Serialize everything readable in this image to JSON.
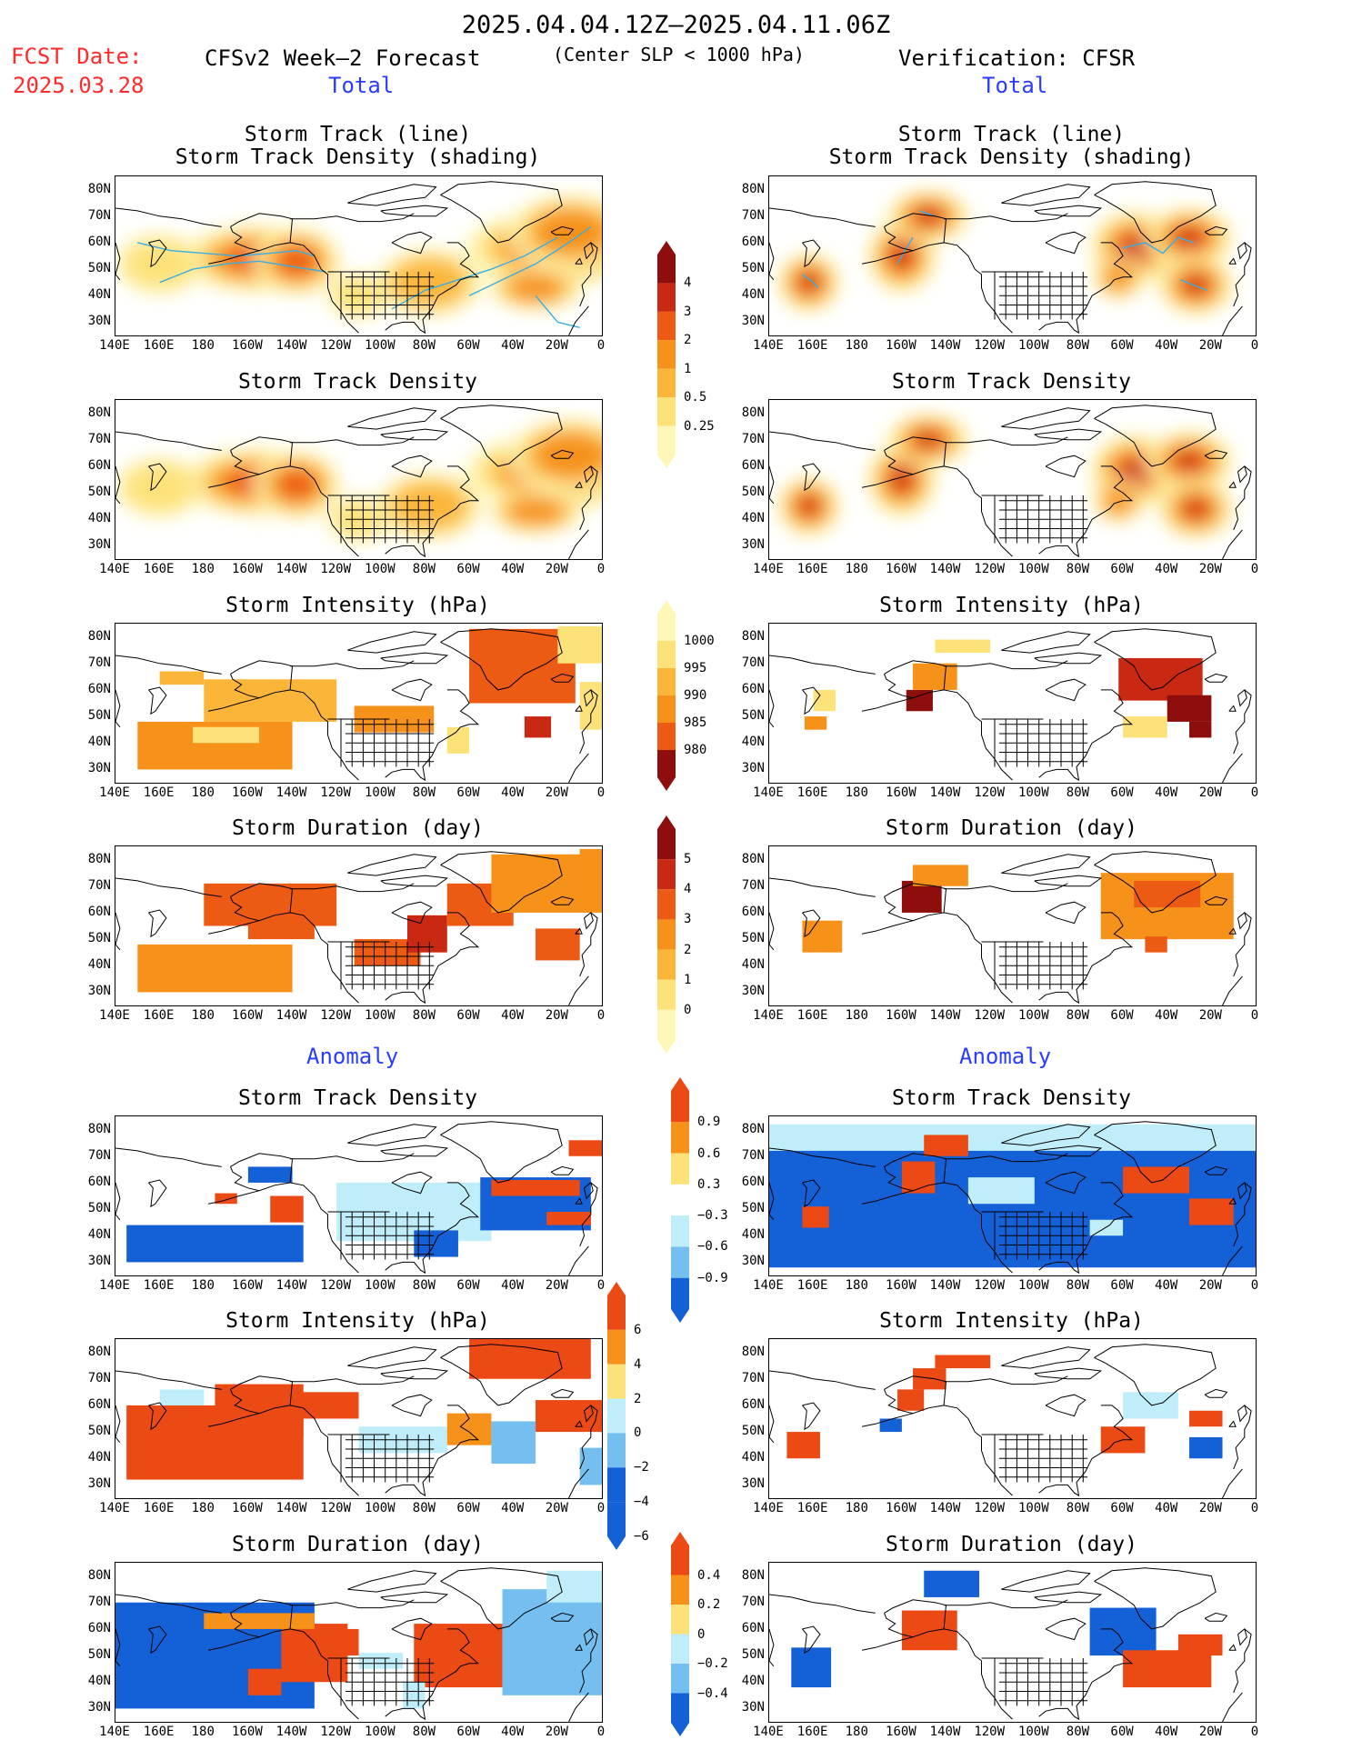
{
  "header": {
    "date_range": "2025.04.04.12Z–2025.04.11.06Z",
    "criterion": "(Center SLP < 1000 hPa)",
    "fcst_label": "FCST Date:",
    "fcst_date": "2025.03.28",
    "forecast_title": "CFSv2 Week–2 Forecast",
    "verification_title": "Verification: CFSR",
    "total_label": "Total",
    "anomaly_label": "Anomaly"
  },
  "panel_titles": {
    "track_line": "Storm Track (line)",
    "track_shading": "Storm Track Density (shading)",
    "density": "Storm Track Density",
    "intensity": "Storm Intensity (hPa)",
    "duration": "Storm Duration (day)"
  },
  "axes": {
    "lat_labels": [
      "80N",
      "70N",
      "60N",
      "50N",
      "40N",
      "30N"
    ],
    "lon_labels": [
      "140E",
      "160E",
      "180",
      "160W",
      "140W",
      "120W",
      "100W",
      "80W",
      "60W",
      "40W",
      "20W",
      "0"
    ]
  },
  "colorbars": {
    "density_total": [
      "4",
      "3",
      "2",
      "1",
      "0.5",
      "0.25"
    ],
    "intensity_total": [
      "1000",
      "995",
      "990",
      "985",
      "980"
    ],
    "duration_total": [
      "5",
      "4",
      "3",
      "2",
      "1",
      "0"
    ],
    "density_anom": [
      "0.9",
      "0.6",
      "0.3",
      "−0.3",
      "−0.6",
      "−0.9"
    ],
    "intensity_anom": [
      "6",
      "4",
      "2",
      "0",
      "−2",
      "−4",
      "−6"
    ],
    "duration_anom": [
      "0.4",
      "0.2",
      "0",
      "−0.2",
      "−0.4"
    ]
  },
  "colors": {
    "total_scale": [
      "#fff7b8",
      "#fde27a",
      "#fbb63a",
      "#f6911a",
      "#ec5a14",
      "#c92812",
      "#8e0d0d"
    ],
    "anom_warm": [
      "#fde27a",
      "#f6911a",
      "#ec4a14"
    ],
    "anom_cool": [
      "#bfeefa",
      "#74bff0",
      "#1460d6"
    ],
    "track_line": "#3aaee0",
    "title_red": "#ff2a2a",
    "label_blue": "#2a3cff"
  }
}
